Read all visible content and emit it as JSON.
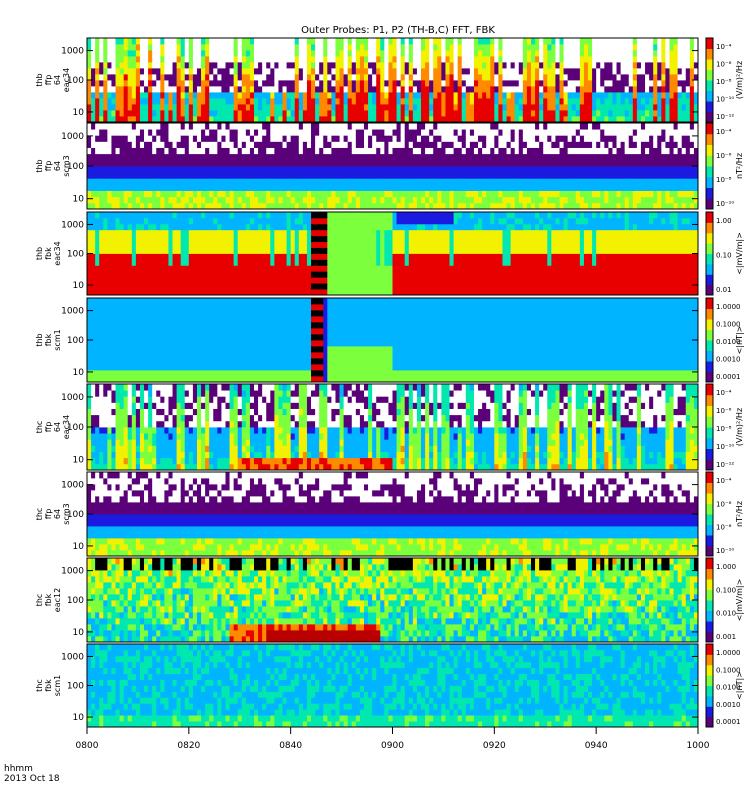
{
  "title": "Outer Probes: P1, P2 (TH-B,C) FFT, FBK",
  "time_label": "hhmm",
  "date_label": "2013 Oct 18",
  "x_ticks": [
    "0800",
    "0820",
    "0840",
    "0900",
    "0920",
    "0940",
    "1000"
  ],
  "colors": {
    "scale": [
      "#5a0078",
      "#1a1ae0",
      "#00b4ff",
      "#00e8b0",
      "#7cff3c",
      "#f2f200",
      "#ff8a00",
      "#e80000"
    ]
  },
  "chart_data": {
    "type": "heatmap",
    "title": "Outer Probes: P1, P2 (TH-B,C) FFT, FBK",
    "x_range": [
      "0800",
      "1000"
    ],
    "x_ticks": [
      "0800",
      "0820",
      "0840",
      "0900",
      "0920",
      "0940",
      "1000"
    ],
    "panels": [
      {
        "id": "thb-ffp-eac34",
        "ylabel": [
          "thb",
          "ffp",
          "64",
          "eac34"
        ],
        "y_ticks": [
          "1000",
          "100",
          "10"
        ],
        "colorbar_ticks": [
          "10⁻⁴",
          "10⁻⁶",
          "10⁻⁸",
          "10⁻¹⁰",
          "10⁻¹²"
        ],
        "colorbar_label": "(V/m)²/Hz",
        "pattern": "fft-e"
      },
      {
        "id": "thb-ffp-scm3",
        "ylabel": [
          "thb",
          "ffp",
          "64",
          "scm3"
        ],
        "y_ticks": [
          "1000",
          "100",
          "10"
        ],
        "colorbar_ticks": [
          "10⁻⁴",
          "10⁻⁶",
          "10⁻⁸",
          "10⁻¹⁰"
        ],
        "colorbar_label": "nT²/Hz",
        "pattern": "fft-b"
      },
      {
        "id": "thb-fbk-eac34",
        "ylabel": [
          "thb",
          "fbk",
          "eac34"
        ],
        "y_ticks": [
          "1000",
          "100",
          "10"
        ],
        "colorbar_ticks": [
          "1.00",
          "0.10",
          "0.01"
        ],
        "colorbar_label": "<|mV/m|>",
        "pattern": "fbk-e"
      },
      {
        "id": "thb-fbk-scm1",
        "ylabel": [
          "thb",
          "fbk",
          "scm1"
        ],
        "y_ticks": [
          "1000",
          "100",
          "10"
        ],
        "colorbar_ticks": [
          "1.0000",
          "0.1000",
          "0.0100",
          "0.0010",
          "0.0001"
        ],
        "colorbar_label": "<|nT|>",
        "pattern": "fbk-b"
      },
      {
        "id": "thc-ffp-eac34",
        "ylabel": [
          "thc",
          "ffp",
          "64",
          "eac34"
        ],
        "y_ticks": [
          "1000",
          "100",
          "10"
        ],
        "colorbar_ticks": [
          "10⁻⁴",
          "10⁻⁶",
          "10⁻⁸",
          "10⁻¹⁰",
          "10⁻¹²"
        ],
        "colorbar_label": "(V/m)²/Hz",
        "pattern": "fft-e2"
      },
      {
        "id": "thc-ffp-scm3",
        "ylabel": [
          "thc",
          "ffp",
          "64",
          "scm3"
        ],
        "y_ticks": [
          "1000",
          "100",
          "10"
        ],
        "colorbar_ticks": [
          "10⁻⁴",
          "10⁻⁶",
          "10⁻⁸",
          "10⁻¹⁰"
        ],
        "colorbar_label": "nT²/Hz",
        "pattern": "fft-b"
      },
      {
        "id": "thc-fbk-eac12",
        "ylabel": [
          "thc",
          "fbk",
          "eac12"
        ],
        "y_ticks": [
          "1000",
          "100",
          "10"
        ],
        "colorbar_ticks": [
          "1.000",
          "0.100",
          "0.010",
          "0.001"
        ],
        "colorbar_label": "<|mV/m|>",
        "pattern": "fbk-e2"
      },
      {
        "id": "thc-fbk-scm1",
        "ylabel": [
          "thc",
          "fbk",
          "scm1"
        ],
        "y_ticks": [
          "1000",
          "100",
          "10"
        ],
        "colorbar_ticks": [
          "1.0000",
          "0.1000",
          "0.0100",
          "0.0010",
          "0.0001"
        ],
        "colorbar_label": "<|nT|>",
        "pattern": "fbk-b2"
      }
    ]
  }
}
